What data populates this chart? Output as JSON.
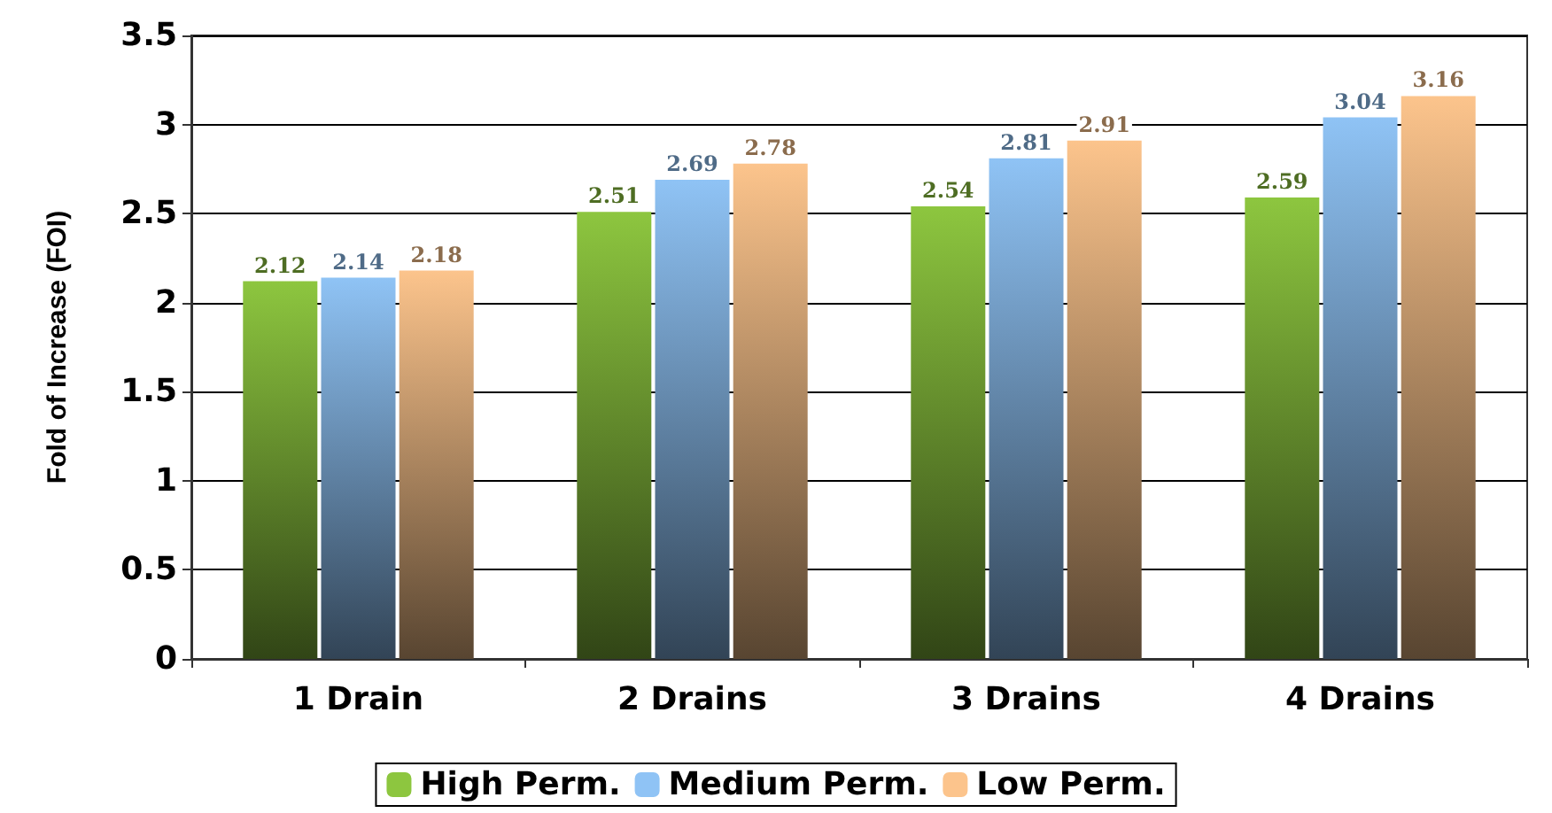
{
  "chart_data": {
    "type": "bar",
    "ylabel": "Fold of Increase (FOI)",
    "categories": [
      "1 Drain",
      "2 Drains",
      "3 Drains",
      "4 Drains"
    ],
    "series": [
      {
        "name": "High Perm.",
        "color": "#8dc63f",
        "values": [
          2.12,
          2.51,
          2.54,
          2.59
        ]
      },
      {
        "name": "Medium Perm.",
        "color": "#8fc3f5",
        "values": [
          2.14,
          2.69,
          2.81,
          3.04
        ]
      },
      {
        "name": "Low Perm.",
        "color": "#fcc48c",
        "values": [
          2.18,
          2.78,
          2.91,
          3.16
        ]
      }
    ],
    "ylim": [
      0,
      3.5
    ],
    "yticks": [
      0,
      0.5,
      1,
      1.5,
      2,
      2.5,
      3,
      3.5
    ],
    "grid": "y",
    "legend": "bottom",
    "data_labels": true
  }
}
